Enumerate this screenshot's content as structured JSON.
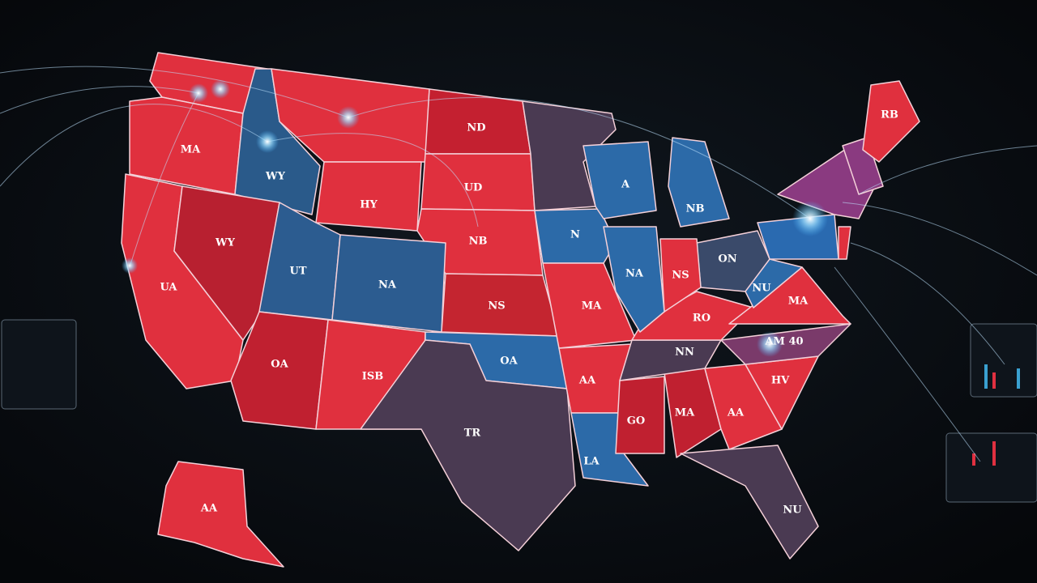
{
  "state_labels": [
    "MA",
    "WY",
    "WY",
    "UA",
    "ND",
    "UD",
    "HY",
    "NB",
    "UT",
    "NA",
    "NS",
    "OA",
    "TR",
    "OA",
    "ISB",
    "MA",
    "N",
    "AA",
    "LA",
    "GO",
    "MA",
    "AA",
    "NU",
    "HV",
    "NN",
    "RO",
    "AM 40",
    "MA",
    "NU",
    "NA",
    "NS",
    "ON",
    "NB",
    "A",
    "AA",
    "RB"
  ]
}
